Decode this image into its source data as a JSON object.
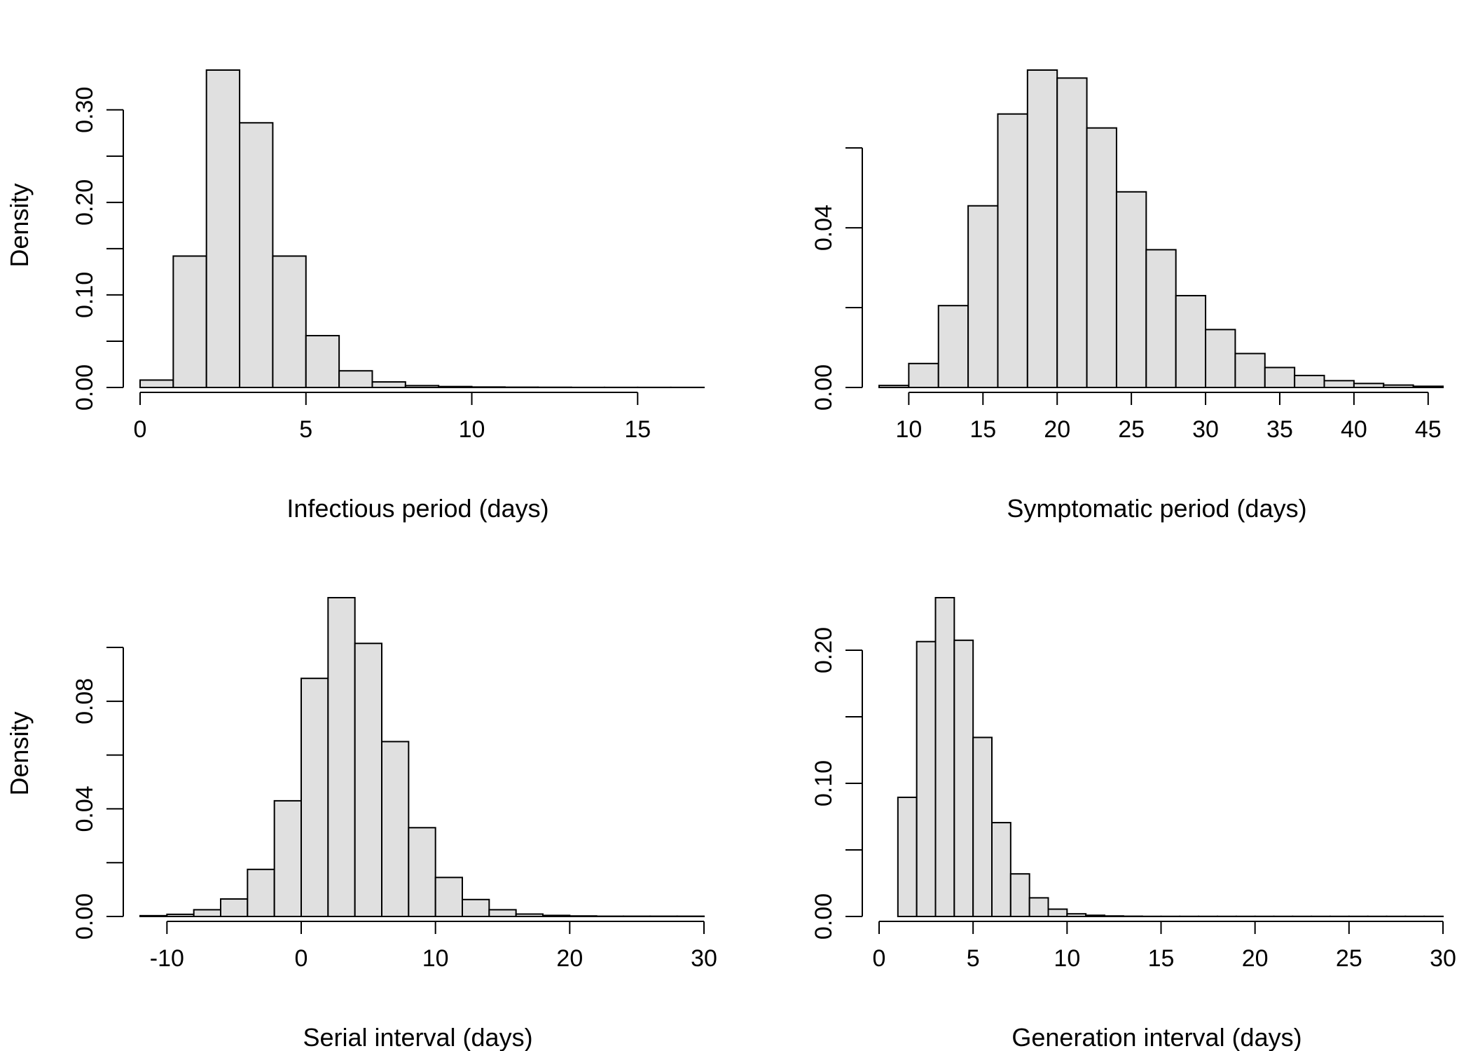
{
  "chart_data": [
    {
      "type": "bar",
      "panel": "top-left",
      "xlabel": "Infectious period (days)",
      "ylabel": "Density",
      "bin_edges": [
        0,
        1,
        2,
        3,
        4,
        5,
        6,
        7,
        8,
        9,
        10,
        11,
        12,
        13,
        14,
        15,
        16,
        17
      ],
      "values": [
        0.008,
        0.142,
        0.343,
        0.286,
        0.142,
        0.056,
        0.018,
        0.006,
        0.002,
        0.001,
        0.0005,
        0.0003,
        0.0002,
        0.0001,
        0.0001,
        0.0001,
        0.0001
      ],
      "xlim": [
        0,
        17
      ],
      "ylim": [
        0,
        0.343
      ],
      "xticks": [
        0,
        5,
        10,
        15
      ],
      "xtick_labels": [
        "0",
        "5",
        "10",
        "15"
      ],
      "yticks": [
        0,
        0.05,
        0.1,
        0.15,
        0.2,
        0.25,
        0.3
      ],
      "ytick_labels": [
        "0.00",
        "",
        "0.10",
        "",
        "0.20",
        "",
        "0.30"
      ]
    },
    {
      "type": "bar",
      "panel": "top-right",
      "xlabel": "Symptomatic period (days)",
      "ylabel": "",
      "bin_edges": [
        8,
        10,
        12,
        14,
        16,
        18,
        20,
        22,
        24,
        26,
        28,
        30,
        32,
        34,
        36,
        38,
        40,
        42,
        44,
        46
      ],
      "values": [
        0.0005,
        0.006,
        0.0205,
        0.0455,
        0.0685,
        0.0795,
        0.0775,
        0.065,
        0.049,
        0.0345,
        0.023,
        0.0145,
        0.0085,
        0.005,
        0.003,
        0.0017,
        0.001,
        0.0006,
        0.0003
      ],
      "xlim": [
        8,
        46
      ],
      "ylim": [
        0,
        0.0795
      ],
      "xticks": [
        10,
        15,
        20,
        25,
        30,
        35,
        40,
        45
      ],
      "xtick_labels": [
        "10",
        "15",
        "20",
        "25",
        "30",
        "35",
        "40",
        "45"
      ],
      "yticks": [
        0,
        0.02,
        0.04,
        0.06
      ],
      "ytick_labels": [
        "0.00",
        "",
        "0.04",
        ""
      ]
    },
    {
      "type": "bar",
      "panel": "bottom-left",
      "xlabel": "Serial interval (days)",
      "ylabel": "Density",
      "bin_edges": [
        -12,
        -10,
        -8,
        -6,
        -4,
        -2,
        0,
        2,
        4,
        6,
        8,
        10,
        12,
        14,
        16,
        18,
        20,
        22,
        24,
        26,
        28,
        30
      ],
      "values": [
        0.0003,
        0.0008,
        0.0025,
        0.0065,
        0.0175,
        0.043,
        0.0885,
        0.1185,
        0.1015,
        0.065,
        0.033,
        0.0145,
        0.0063,
        0.0025,
        0.0009,
        0.0004,
        0.0002,
        0.0001,
        0.0001,
        0.0001,
        0.0001
      ],
      "xlim": [
        -12,
        30
      ],
      "ylim": [
        0,
        0.1185
      ],
      "xticks": [
        -10,
        0,
        10,
        20,
        30
      ],
      "xtick_labels": [
        "-10",
        "0",
        "10",
        "20",
        "30"
      ],
      "yticks": [
        0,
        0.02,
        0.04,
        0.06,
        0.08,
        0.1
      ],
      "ytick_labels": [
        "0.00",
        "",
        "0.04",
        "",
        "0.08",
        ""
      ]
    },
    {
      "type": "bar",
      "panel": "bottom-right",
      "xlabel": "Generation interval (days)",
      "ylabel": "",
      "bin_edges": [
        0,
        1,
        2,
        3,
        4,
        5,
        6,
        7,
        8,
        9,
        10,
        11,
        12,
        13,
        14,
        15,
        16,
        17,
        18,
        19,
        20,
        21,
        22,
        23,
        24,
        25,
        26,
        27,
        28,
        29,
        30
      ],
      "values": [
        0,
        0.0895,
        0.2065,
        0.2395,
        0.2075,
        0.1345,
        0.0705,
        0.032,
        0.014,
        0.0055,
        0.002,
        0.0009,
        0.0004,
        0.0002,
        0.0001,
        0.0001,
        0.0001,
        0.0001,
        0.0001,
        0.0001,
        0.0001,
        0.0001,
        0.0001,
        0.0001,
        0.0001,
        0.0001,
        0.0001,
        0.0001,
        0.0001,
        0.0001
      ],
      "xlim": [
        0,
        30
      ],
      "ylim": [
        0,
        0.2395
      ],
      "xticks": [
        0,
        5,
        10,
        15,
        20,
        25,
        30
      ],
      "xtick_labels": [
        "0",
        "5",
        "10",
        "15",
        "20",
        "25",
        "30"
      ],
      "yticks": [
        0,
        0.05,
        0.1,
        0.15,
        0.2
      ],
      "ytick_labels": [
        "0.00",
        "",
        "0.10",
        "",
        "0.20"
      ]
    }
  ]
}
